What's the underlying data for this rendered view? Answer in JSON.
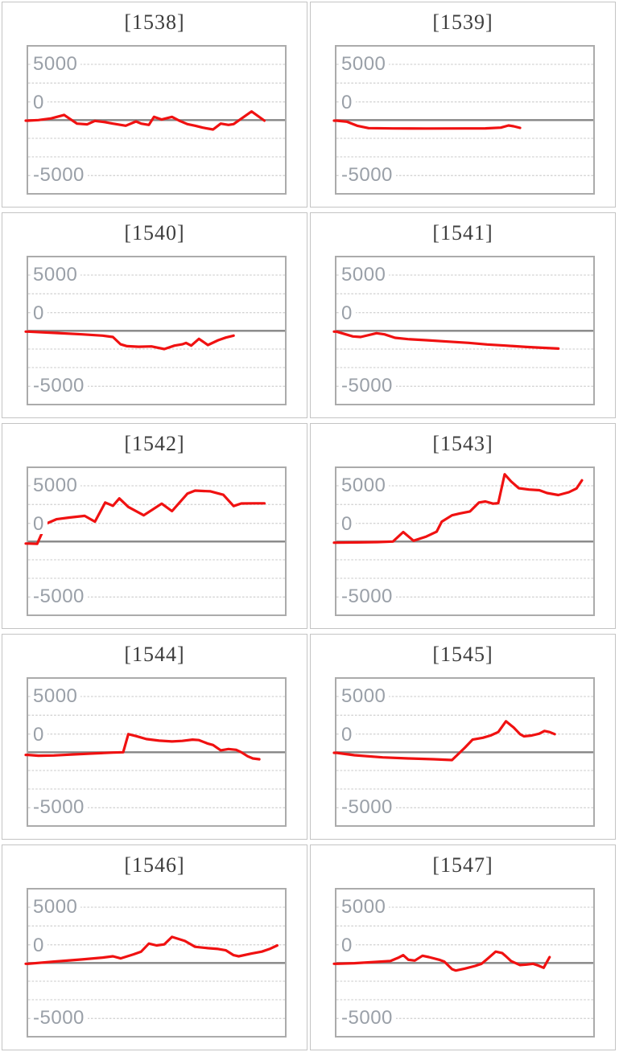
{
  "theme": {
    "page_background": "#ffffff",
    "panel_border": "#c4c4c4",
    "plot_border": "#ababab",
    "gridline_color": "#d4d4d4",
    "zero_line_color": "#868686",
    "series_color": "#f01111",
    "title_color": "#3d3d3d",
    "axis_label_color": "#9aa0a8"
  },
  "axis": {
    "yticks": [
      {
        "label": "5000",
        "value": 5000
      },
      {
        "label": "0",
        "value": 0
      },
      {
        "label": "-5000",
        "value": -5000
      }
    ],
    "ylim": [
      -6565,
      6565
    ],
    "gridline_step": 1667,
    "grid": "dashed horizontal lines every 1667, solid line at 0"
  },
  "chart_data": [
    {
      "type": "line",
      "title": "[1538]",
      "line_color": "#f01111",
      "ylim": [
        -6565,
        6565
      ],
      "yticks": [
        {
          "label": "5000",
          "value": 5000
        },
        {
          "label": "0",
          "value": 0
        },
        {
          "label": "-5000",
          "value": -5000
        }
      ],
      "points": [
        [
          0,
          -50
        ],
        [
          0.04,
          0
        ],
        [
          0.09,
          150
        ],
        [
          0.14,
          460
        ],
        [
          0.19,
          -315
        ],
        [
          0.23,
          -385
        ],
        [
          0.26,
          -70
        ],
        [
          0.3,
          -190
        ],
        [
          0.33,
          -315
        ],
        [
          0.38,
          -505
        ],
        [
          0.42,
          -120
        ],
        [
          0.44,
          -315
        ],
        [
          0.47,
          -435
        ],
        [
          0.49,
          290
        ],
        [
          0.52,
          50
        ],
        [
          0.56,
          290
        ],
        [
          0.59,
          -70
        ],
        [
          0.62,
          -360
        ],
        [
          0.65,
          -505
        ],
        [
          0.68,
          -675
        ],
        [
          0.72,
          -845
        ],
        [
          0.75,
          -315
        ],
        [
          0.78,
          -435
        ],
        [
          0.8,
          -360
        ],
        [
          0.87,
          775
        ],
        [
          0.92,
          -50
        ]
      ]
    },
    {
      "type": "line",
      "title": "[1539]",
      "line_color": "#f01111",
      "ylim": [
        -6565,
        6565
      ],
      "yticks": [
        {
          "label": "5000",
          "value": 5000
        },
        {
          "label": "0",
          "value": 0
        },
        {
          "label": "-5000",
          "value": -5000
        }
      ],
      "points": [
        [
          0,
          -50
        ],
        [
          0.04,
          -145
        ],
        [
          0.08,
          -505
        ],
        [
          0.125,
          -725
        ],
        [
          0.22,
          -750
        ],
        [
          0.35,
          -760
        ],
        [
          0.5,
          -750
        ],
        [
          0.58,
          -745
        ],
        [
          0.64,
          -675
        ],
        [
          0.67,
          -480
        ],
        [
          0.69,
          -555
        ],
        [
          0.715,
          -700
        ]
      ]
    },
    {
      "type": "line",
      "title": "[1540]",
      "line_color": "#f01111",
      "ylim": [
        -6565,
        6565
      ],
      "yticks": [
        {
          "label": "5000",
          "value": 5000
        },
        {
          "label": "0",
          "value": 0
        },
        {
          "label": "-5000",
          "value": -5000
        }
      ],
      "points": [
        [
          0,
          -70
        ],
        [
          0.1,
          -190
        ],
        [
          0.21,
          -315
        ],
        [
          0.29,
          -435
        ],
        [
          0.33,
          -555
        ],
        [
          0.36,
          -1210
        ],
        [
          0.385,
          -1375
        ],
        [
          0.43,
          -1425
        ],
        [
          0.48,
          -1400
        ],
        [
          0.53,
          -1640
        ],
        [
          0.57,
          -1330
        ],
        [
          0.6,
          -1210
        ],
        [
          0.615,
          -1090
        ],
        [
          0.635,
          -1330
        ],
        [
          0.665,
          -725
        ],
        [
          0.7,
          -1280
        ],
        [
          0.74,
          -845
        ],
        [
          0.77,
          -605
        ],
        [
          0.8,
          -435
        ]
      ]
    },
    {
      "type": "line",
      "title": "[1541]",
      "line_color": "#f01111",
      "ylim": [
        -6565,
        6565
      ],
      "yticks": [
        {
          "label": "5000",
          "value": 5000
        },
        {
          "label": "0",
          "value": 0
        },
        {
          "label": "-5000",
          "value": -5000
        }
      ],
      "points": [
        [
          0,
          -70
        ],
        [
          0.064,
          -505
        ],
        [
          0.094,
          -555
        ],
        [
          0.156,
          -215
        ],
        [
          0.187,
          -315
        ],
        [
          0.228,
          -630
        ],
        [
          0.279,
          -750
        ],
        [
          0.351,
          -845
        ],
        [
          0.433,
          -965
        ],
        [
          0.515,
          -1085
        ],
        [
          0.587,
          -1230
        ],
        [
          0.659,
          -1330
        ],
        [
          0.74,
          -1450
        ],
        [
          0.8,
          -1520
        ],
        [
          0.864,
          -1595
        ]
      ]
    },
    {
      "type": "line",
      "title": "[1542]",
      "line_color": "#f01111",
      "ylim": [
        -6565,
        6565
      ],
      "yticks": [
        {
          "label": "5000",
          "value": 5000
        },
        {
          "label": "0",
          "value": 0
        },
        {
          "label": "-5000",
          "value": -5000
        }
      ],
      "points": [
        [
          0,
          -180
        ],
        [
          0.035,
          -210
        ],
        [
          0.07,
          1600
        ],
        [
          0.11,
          2000
        ],
        [
          0.16,
          2150
        ],
        [
          0.22,
          2300
        ],
        [
          0.26,
          1780
        ],
        [
          0.3,
          3500
        ],
        [
          0.33,
          3200
        ],
        [
          0.355,
          3870
        ],
        [
          0.39,
          3100
        ],
        [
          0.45,
          2350
        ],
        [
          0.52,
          3400
        ],
        [
          0.56,
          2730
        ],
        [
          0.62,
          4290
        ],
        [
          0.65,
          4570
        ],
        [
          0.71,
          4500
        ],
        [
          0.76,
          4190
        ],
        [
          0.8,
          3180
        ],
        [
          0.83,
          3410
        ],
        [
          0.88,
          3430
        ],
        [
          0.92,
          3430
        ]
      ]
    },
    {
      "type": "line",
      "title": "[1543]",
      "line_color": "#f01111",
      "ylim": [
        -6565,
        6565
      ],
      "yticks": [
        {
          "label": "5000",
          "value": 5000
        },
        {
          "label": "0",
          "value": 0
        },
        {
          "label": "-5000",
          "value": -5000
        }
      ],
      "points": [
        [
          0,
          -100
        ],
        [
          0.08,
          -80
        ],
        [
          0.16,
          -50
        ],
        [
          0.22,
          0
        ],
        [
          0.26,
          850
        ],
        [
          0.3,
          70
        ],
        [
          0.35,
          450
        ],
        [
          0.39,
          880
        ],
        [
          0.41,
          1780
        ],
        [
          0.45,
          2350
        ],
        [
          0.48,
          2520
        ],
        [
          0.52,
          2700
        ],
        [
          0.555,
          3500
        ],
        [
          0.58,
          3590
        ],
        [
          0.61,
          3400
        ],
        [
          0.63,
          3440
        ],
        [
          0.655,
          6030
        ],
        [
          0.68,
          5390
        ],
        [
          0.71,
          4780
        ],
        [
          0.75,
          4660
        ],
        [
          0.79,
          4600
        ],
        [
          0.82,
          4350
        ],
        [
          0.864,
          4170
        ],
        [
          0.905,
          4420
        ],
        [
          0.935,
          4760
        ],
        [
          0.956,
          5490
        ]
      ]
    },
    {
      "type": "line",
      "title": "[1544]",
      "line_color": "#f01111",
      "ylim": [
        -6565,
        6565
      ],
      "yticks": [
        {
          "label": "5000",
          "value": 5000
        },
        {
          "label": "0",
          "value": 0
        },
        {
          "label": "-5000",
          "value": -5000
        }
      ],
      "points": [
        [
          0,
          -240
        ],
        [
          0.04,
          -310
        ],
        [
          0.1,
          -290
        ],
        [
          0.16,
          -220
        ],
        [
          0.24,
          -120
        ],
        [
          0.33,
          -30
        ],
        [
          0.37,
          0
        ],
        [
          0.39,
          1620
        ],
        [
          0.42,
          1450
        ],
        [
          0.46,
          1180
        ],
        [
          0.51,
          1040
        ],
        [
          0.56,
          965
        ],
        [
          0.6,
          1015
        ],
        [
          0.64,
          1135
        ],
        [
          0.665,
          1090
        ],
        [
          0.7,
          775
        ],
        [
          0.72,
          650
        ],
        [
          0.75,
          170
        ],
        [
          0.78,
          290
        ],
        [
          0.81,
          215
        ],
        [
          0.83,
          0
        ],
        [
          0.855,
          -360
        ],
        [
          0.875,
          -555
        ],
        [
          0.9,
          -630
        ]
      ]
    },
    {
      "type": "line",
      "title": "[1545]",
      "line_color": "#f01111",
      "ylim": [
        -6565,
        6565
      ],
      "yticks": [
        {
          "label": "5000",
          "value": 5000
        },
        {
          "label": "0",
          "value": 0
        },
        {
          "label": "-5000",
          "value": -5000
        }
      ],
      "points": [
        [
          0,
          -50
        ],
        [
          0.07,
          -265
        ],
        [
          0.18,
          -460
        ],
        [
          0.28,
          -555
        ],
        [
          0.38,
          -630
        ],
        [
          0.45,
          -700
        ],
        [
          0.5,
          410
        ],
        [
          0.53,
          1135
        ],
        [
          0.57,
          1300
        ],
        [
          0.6,
          1500
        ],
        [
          0.63,
          1810
        ],
        [
          0.66,
          2780
        ],
        [
          0.69,
          2220
        ],
        [
          0.715,
          1620
        ],
        [
          0.73,
          1425
        ],
        [
          0.76,
          1500
        ],
        [
          0.79,
          1670
        ],
        [
          0.81,
          1910
        ],
        [
          0.83,
          1810
        ],
        [
          0.85,
          1620
        ]
      ]
    },
    {
      "type": "line",
      "title": "[1546]",
      "line_color": "#f01111",
      "ylim": [
        -6565,
        6565
      ],
      "yticks": [
        {
          "label": "5000",
          "value": 5000
        },
        {
          "label": "0",
          "value": 0
        },
        {
          "label": "-5000",
          "value": -5000
        }
      ],
      "points": [
        [
          0,
          -70
        ],
        [
          0.1,
          120
        ],
        [
          0.21,
          315
        ],
        [
          0.29,
          480
        ],
        [
          0.33,
          600
        ],
        [
          0.36,
          410
        ],
        [
          0.41,
          770
        ],
        [
          0.44,
          1015
        ],
        [
          0.47,
          1740
        ],
        [
          0.5,
          1570
        ],
        [
          0.53,
          1670
        ],
        [
          0.56,
          2340
        ],
        [
          0.61,
          1980
        ],
        [
          0.65,
          1450
        ],
        [
          0.7,
          1330
        ],
        [
          0.74,
          1255
        ],
        [
          0.77,
          1135
        ],
        [
          0.8,
          700
        ],
        [
          0.82,
          600
        ],
        [
          0.87,
          845
        ],
        [
          0.91,
          1015
        ],
        [
          0.94,
          1255
        ],
        [
          0.97,
          1570
        ]
      ]
    },
    {
      "type": "line",
      "title": "[1547]",
      "line_color": "#f01111",
      "ylim": [
        -6565,
        6565
      ],
      "yticks": [
        {
          "label": "5000",
          "value": 5000
        },
        {
          "label": "0",
          "value": 0
        },
        {
          "label": "-5000",
          "value": -5000
        }
      ],
      "points": [
        [
          0,
          -70
        ],
        [
          0.07,
          -25
        ],
        [
          0.16,
          100
        ],
        [
          0.21,
          170
        ],
        [
          0.24,
          460
        ],
        [
          0.26,
          700
        ],
        [
          0.28,
          290
        ],
        [
          0.305,
          215
        ],
        [
          0.335,
          650
        ],
        [
          0.36,
          530
        ],
        [
          0.4,
          290
        ],
        [
          0.42,
          120
        ],
        [
          0.45,
          -555
        ],
        [
          0.465,
          -675
        ],
        [
          0.5,
          -505
        ],
        [
          0.54,
          -265
        ],
        [
          0.565,
          -70
        ],
        [
          0.59,
          410
        ],
        [
          0.62,
          1015
        ],
        [
          0.645,
          895
        ],
        [
          0.66,
          600
        ],
        [
          0.68,
          170
        ],
        [
          0.715,
          -190
        ],
        [
          0.74,
          -145
        ],
        [
          0.766,
          -70
        ],
        [
          0.787,
          -240
        ],
        [
          0.807,
          -435
        ],
        [
          0.83,
          530
        ]
      ]
    }
  ]
}
